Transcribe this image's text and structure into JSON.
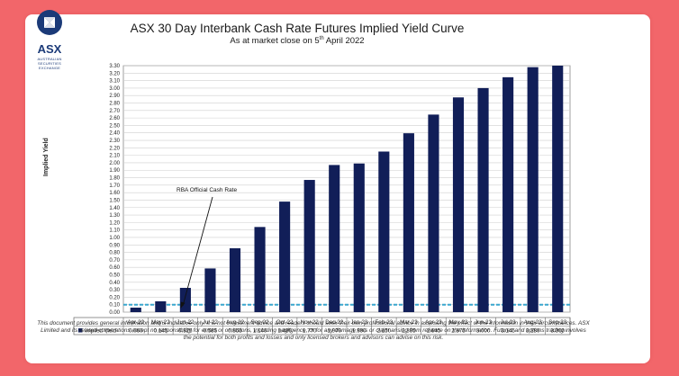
{
  "logo": {
    "text": "ASX",
    "subtext": "AUSTRALIAN SECURITIES EXCHANGE"
  },
  "disclaimer": "This document provides general information and is indicative only. It is not investment advice and readers should seek their own professional advice in assessing the effect of the information in their circumstances. ASX Limited and its related corporations accept no responsibility for errors or omissions, including negligence, or for any damage loss or claim arising from reliance on the information. Futures and options trading involves the potential for both profits and losses and only licensed brokers and advisors can advise on this risk.",
  "colors": {
    "bar": "#111e58",
    "cash_rate_line": "#3aa7cf",
    "background": "#f2666a",
    "logo": "#1b3a78"
  },
  "chart_data": {
    "type": "bar",
    "title": "ASX 30 Day Interbank Cash Rate Futures Implied Yield Curve",
    "subtitle_prefix": "As at market close on 5",
    "subtitle_sup": "th",
    "subtitle_suffix": " April 2022",
    "ylabel": "Implied Yield",
    "ylim": [
      0,
      3.3
    ],
    "ytick_step": 0.1,
    "grid": true,
    "categories": [
      "Apr-22",
      "May-22",
      "Jun-22",
      "Jul-22",
      "Aug-22",
      "Sep-22",
      "Oct-22",
      "Nov-22",
      "Dec-22",
      "Jan-23",
      "Feb-23",
      "Mar-23",
      "Apr-23",
      "May-23",
      "Jun-23",
      "Jul-23",
      "Aug-23",
      "Sep-23"
    ],
    "series": [
      {
        "name": "Implied Yield",
        "values": [
          0.06,
          0.145,
          0.325,
          0.585,
          0.855,
          1.14,
          1.48,
          1.77,
          1.97,
          1.99,
          2.15,
          2.395,
          2.645,
          2.875,
          3.0,
          3.145,
          3.28,
          3.3
        ],
        "labels": [
          "0.060",
          "0.145",
          "0.325",
          "0.585",
          "0.855",
          "1.140",
          "1.480",
          "1.770",
          "1.970",
          "1.990",
          "2.150",
          "2.395",
          "2.645",
          "2.875",
          "3.000",
          "3.145",
          "3.280",
          "3.300"
        ]
      }
    ],
    "reference_line": {
      "value": 0.1
    },
    "annotation": {
      "text": "RBA Official Cash Rate"
    }
  }
}
